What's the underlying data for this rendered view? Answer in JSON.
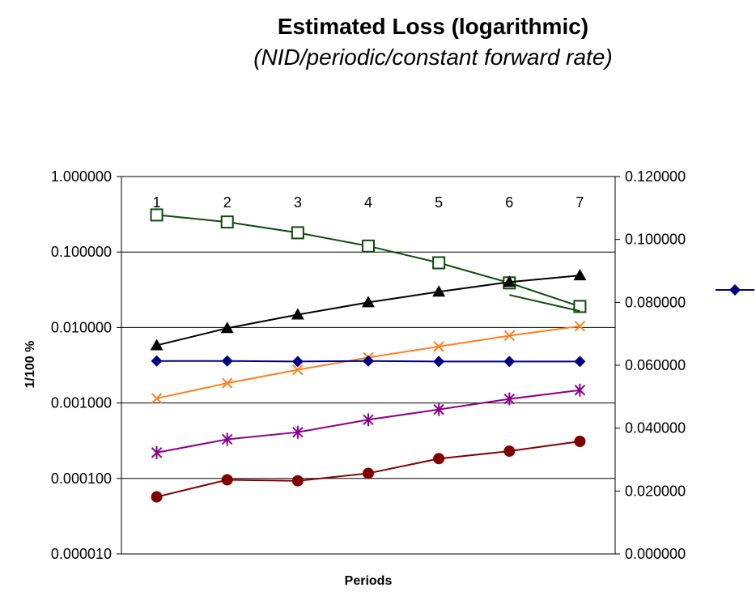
{
  "chart_data": {
    "type": "line",
    "title": "Estimated Loss (logarithmic)",
    "subtitle": "(NID/periodic/constant forward rate)",
    "xlabel": "Periods",
    "ylabel": "1/100 %",
    "categories": [
      "1",
      "2",
      "3",
      "4",
      "5",
      "6",
      "7"
    ],
    "y_scale": "log",
    "ylim": [
      1e-05,
      1
    ],
    "y_ticks": [
      "1.000000",
      "0.100000",
      "0.010000",
      "0.001000",
      "0.000100",
      "0.000010"
    ],
    "y2lim": [
      0,
      0.12
    ],
    "y2_ticks": [
      "0.120000",
      "0.100000",
      "0.080000",
      "0.060000",
      "0.040000",
      "0.020000",
      "0.000000"
    ],
    "grid": true,
    "legend_position": "right",
    "series": [
      {
        "axis": "primary",
        "marker": "square-open",
        "color": "#0d4a0d",
        "values": [
          0.31,
          0.25,
          0.18,
          0.12,
          0.072,
          0.039,
          0.019
        ]
      },
      {
        "axis": "primary",
        "marker": "triangle",
        "color": "#000000",
        "values": [
          0.0058,
          0.0098,
          0.0148,
          0.0215,
          0.0298,
          0.04,
          0.049
        ]
      },
      {
        "axis": "primary",
        "marker": "x",
        "color": "#ff7f1f",
        "values": [
          0.00115,
          0.00183,
          0.00275,
          0.004,
          0.0056,
          0.0078,
          0.0104
        ]
      },
      {
        "axis": "primary",
        "marker": "diamond",
        "color": "#000080",
        "values": [
          0.0036,
          0.0036,
          0.00355,
          0.0036,
          0.00355,
          0.00355,
          0.00355
        ]
      },
      {
        "axis": "primary",
        "marker": "star",
        "color": "#8b008b",
        "values": [
          0.00022,
          0.00033,
          0.00041,
          0.0006,
          0.00082,
          0.00113,
          0.00148
        ]
      },
      {
        "axis": "primary",
        "marker": "circle",
        "color": "#800000",
        "values": [
          5.7e-05,
          9.6e-05,
          9.3e-05,
          0.000117,
          0.000183,
          0.00023,
          0.00031
        ]
      }
    ],
    "trendline": {
      "color": "#0d4a0d",
      "x_from": 6,
      "y_from": 0.027,
      "x_to": 7,
      "y_to": 0.0165
    },
    "legend": {
      "marker": "diamond",
      "color": "#000080",
      "label": ""
    }
  }
}
